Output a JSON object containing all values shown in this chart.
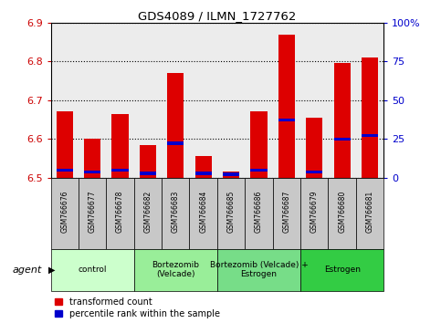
{
  "title": "GDS4089 / ILMN_1727762",
  "samples": [
    "GSM766676",
    "GSM766677",
    "GSM766678",
    "GSM766682",
    "GSM766683",
    "GSM766684",
    "GSM766685",
    "GSM766686",
    "GSM766687",
    "GSM766679",
    "GSM766680",
    "GSM766681"
  ],
  "bar_values": [
    6.67,
    6.6,
    6.665,
    6.585,
    6.77,
    6.555,
    6.515,
    6.67,
    6.87,
    6.655,
    6.795,
    6.81
  ],
  "blue_values": [
    6.515,
    6.51,
    6.515,
    6.507,
    6.585,
    6.507,
    6.505,
    6.515,
    6.645,
    6.51,
    6.595,
    6.605
  ],
  "bar_bottom": 6.5,
  "ylim_left": [
    6.5,
    6.9
  ],
  "ylim_right": [
    0,
    100
  ],
  "yticks_left": [
    6.5,
    6.6,
    6.7,
    6.8,
    6.9
  ],
  "yticks_right": [
    0,
    25,
    50,
    75,
    100
  ],
  "ytick_labels_right": [
    "0",
    "25",
    "50",
    "75",
    "100%"
  ],
  "groups": [
    {
      "label": "control",
      "start": 0,
      "end": 3
    },
    {
      "label": "Bortezomib\n(Velcade)",
      "start": 3,
      "end": 6
    },
    {
      "label": "Bortezomib (Velcade) +\nEstrogen",
      "start": 6,
      "end": 9
    },
    {
      "label": "Estrogen",
      "start": 9,
      "end": 12
    }
  ],
  "group_colors": [
    "#ccffcc",
    "#99ee99",
    "#77dd88",
    "#33cc44"
  ],
  "bar_color": "#dd0000",
  "blue_color": "#0000cc",
  "legend_items": [
    "transformed count",
    "percentile rank within the sample"
  ],
  "agent_label": "agent",
  "bar_width": 0.6,
  "tick_label_color_left": "#cc0000",
  "tick_label_color_right": "#0000cc",
  "background_plot": "#ececec",
  "sample_cell_color": "#c8c8c8"
}
